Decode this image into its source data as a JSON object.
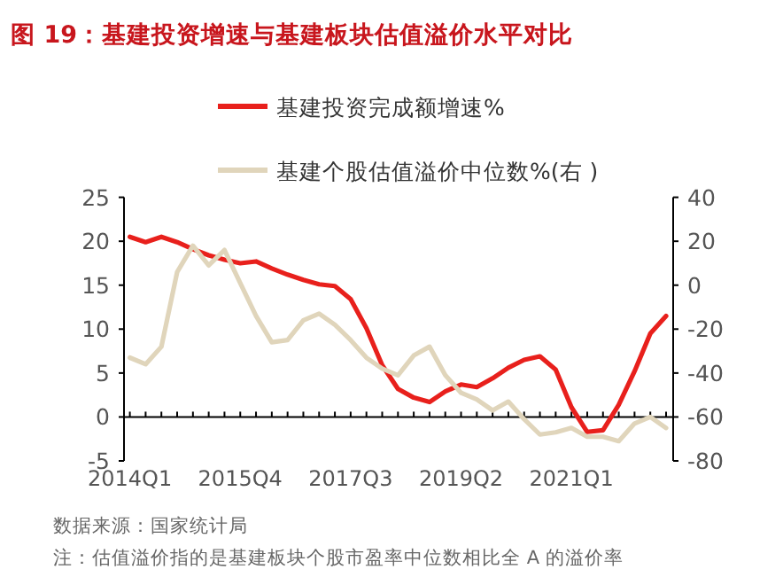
{
  "chart_data": {
    "type": "line",
    "title": "图 19：基建投资增速与基建板块估值溢价水平对比",
    "categories": [
      "2014Q1",
      null,
      null,
      null,
      null,
      null,
      null,
      "2015Q4",
      null,
      null,
      null,
      null,
      null,
      null,
      "2017Q3",
      null,
      null,
      null,
      null,
      null,
      null,
      "2019Q2",
      null,
      null,
      null,
      null,
      null,
      null,
      "2021Q1",
      null,
      null,
      null,
      null,
      null,
      null
    ],
    "series": [
      {
        "name": "基建投资完成额增速%",
        "color": "#e8201c",
        "values": [
          20.5,
          19.9,
          20.5,
          19.9,
          19.1,
          18.4,
          17.9,
          17.5,
          17.7,
          16.9,
          16.2,
          15.6,
          15.1,
          14.9,
          13.4,
          10.1,
          5.9,
          3.2,
          2.2,
          1.7,
          2.9,
          3.7,
          3.4,
          4.4,
          5.6,
          6.5,
          6.9,
          5.4,
          1.1,
          -1.7,
          -1.5,
          1.4,
          5.2,
          9.5,
          11.5
        ]
      },
      {
        "name": "基建个股估值溢价中位数%(右 )",
        "color": "#e0d5bb",
        "axis": "y2",
        "values": [
          -33,
          -36,
          -28,
          6,
          18,
          9,
          16,
          1,
          -14,
          -26,
          -25,
          -16,
          -13,
          -18,
          -25,
          -33,
          -38,
          -41,
          -32,
          -28,
          -41,
          -49,
          -52,
          -57,
          -53,
          -61,
          -68,
          -67,
          -65,
          -69,
          -69,
          -71,
          -63,
          -60,
          -65
        ]
      }
    ],
    "ylim": [
      -5,
      25
    ],
    "yticks": [
      -5,
      0,
      5,
      10,
      15,
      20,
      25
    ],
    "y2lim": [
      -80,
      40
    ],
    "y2ticks": [
      -80,
      -60,
      -40,
      -20,
      0,
      20,
      40
    ],
    "legend": "top",
    "grid": false,
    "marker": "none",
    "line_style": "solid",
    "annotations": [
      "数据来源：国家统计局",
      "注：估值溢价指的是基建板块个股市盈率中位数相比全 A 的溢价率"
    ]
  }
}
